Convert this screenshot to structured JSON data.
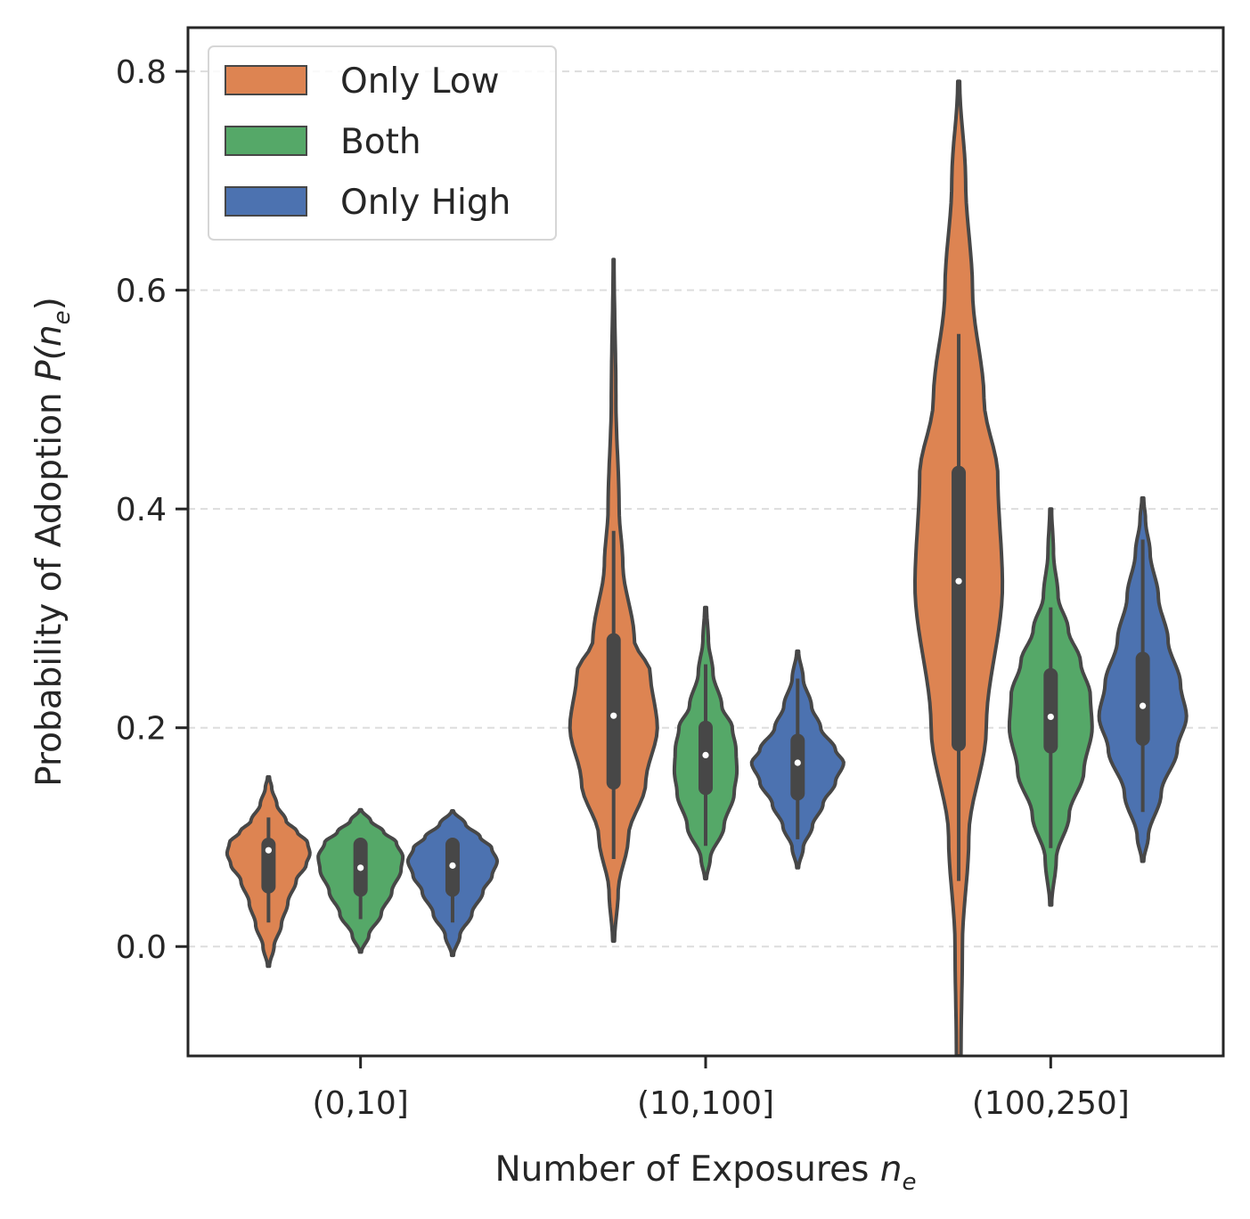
{
  "chart_data": {
    "type": "violin",
    "xlabel": "Number of Exposures",
    "xlabel_var": "n",
    "xlabel_sub": "e",
    "ylabel": "Probability of Adoption",
    "ylabel_var": "P(n",
    "ylabel_sub": "e",
    "ylabel_close": ")",
    "categories": [
      "(0,10]",
      "(10,100]",
      "(100,250]"
    ],
    "ylim": [
      -0.1,
      0.84
    ],
    "yticks": [
      0.0,
      0.2,
      0.4,
      0.6,
      0.8
    ],
    "ytick_labels": [
      "0.0",
      "0.2",
      "0.4",
      "0.6",
      "0.8"
    ],
    "grid": "horizontal dashed",
    "legend_position": "top-left",
    "series": [
      {
        "name": "Only Low",
        "color": "#dd8452",
        "violins": [
          {
            "category": "(0,10]",
            "min": -0.018,
            "max": 0.155,
            "q1": 0.055,
            "median": 0.088,
            "q3": 0.093,
            "whisker_low": 0.022,
            "whisker_high": 0.118,
            "halfwidth": 0.9,
            "profile": [
              [
                -0.018,
                0.02
              ],
              [
                0.0,
                0.12
              ],
              [
                0.02,
                0.28
              ],
              [
                0.04,
                0.42
              ],
              [
                0.06,
                0.6
              ],
              [
                0.075,
                0.82
              ],
              [
                0.085,
                0.9
              ],
              [
                0.095,
                0.85
              ],
              [
                0.105,
                0.62
              ],
              [
                0.115,
                0.38
              ],
              [
                0.13,
                0.18
              ],
              [
                0.145,
                0.07
              ],
              [
                0.155,
                0.02
              ]
            ]
          },
          {
            "category": "(10,100]",
            "min": 0.005,
            "max": 0.628,
            "q1": 0.15,
            "median": 0.211,
            "q3": 0.28,
            "whisker_low": 0.08,
            "whisker_high": 0.38,
            "halfwidth": 0.45,
            "profile": [
              [
                0.005,
                0.02
              ],
              [
                0.05,
                0.1
              ],
              [
                0.1,
                0.32
              ],
              [
                0.15,
                0.7
              ],
              [
                0.2,
                0.95
              ],
              [
                0.25,
                0.8
              ],
              [
                0.28,
                0.45
              ],
              [
                0.35,
                0.2
              ],
              [
                0.4,
                0.12
              ],
              [
                0.5,
                0.05
              ],
              [
                0.628,
                0.01
              ]
            ]
          },
          {
            "category": "(100,250]",
            "min": -0.1,
            "max": 0.791,
            "q1": 0.185,
            "median": 0.334,
            "q3": 0.433,
            "whisker_low": 0.06,
            "whisker_high": 0.56,
            "halfwidth": 0.42,
            "profile": [
              [
                -0.1,
                0.05
              ],
              [
                0.0,
                0.08
              ],
              [
                0.1,
                0.22
              ],
              [
                0.2,
                0.6
              ],
              [
                0.33,
                0.95
              ],
              [
                0.43,
                0.85
              ],
              [
                0.5,
                0.55
              ],
              [
                0.6,
                0.3
              ],
              [
                0.7,
                0.15
              ],
              [
                0.791,
                0.02
              ]
            ]
          }
        ]
      },
      {
        "name": "Both",
        "color": "#55a868",
        "violins": [
          {
            "category": "(0,10]",
            "min": -0.005,
            "max": 0.125,
            "q1": 0.052,
            "median": 0.072,
            "q3": 0.093,
            "whisker_low": 0.025,
            "whisker_high": 0.097,
            "halfwidth": 0.92,
            "profile": [
              [
                -0.005,
                0.02
              ],
              [
                0.01,
                0.18
              ],
              [
                0.03,
                0.45
              ],
              [
                0.05,
                0.68
              ],
              [
                0.07,
                0.88
              ],
              [
                0.082,
                0.92
              ],
              [
                0.095,
                0.78
              ],
              [
                0.105,
                0.5
              ],
              [
                0.115,
                0.22
              ],
              [
                0.125,
                0.02
              ]
            ]
          },
          {
            "category": "(10,100]",
            "min": 0.062,
            "max": 0.31,
            "q1": 0.145,
            "median": 0.175,
            "q3": 0.2,
            "whisker_low": 0.092,
            "whisker_high": 0.258,
            "halfwidth": 0.7,
            "profile": [
              [
                0.062,
                0.02
              ],
              [
                0.08,
                0.1
              ],
              [
                0.11,
                0.4
              ],
              [
                0.14,
                0.62
              ],
              [
                0.16,
                0.68
              ],
              [
                0.18,
                0.66
              ],
              [
                0.2,
                0.58
              ],
              [
                0.22,
                0.35
              ],
              [
                0.25,
                0.16
              ],
              [
                0.28,
                0.06
              ],
              [
                0.31,
                0.02
              ]
            ]
          },
          {
            "category": "(100,250]",
            "min": 0.038,
            "max": 0.4,
            "q1": 0.183,
            "median": 0.21,
            "q3": 0.248,
            "whisker_low": 0.09,
            "whisker_high": 0.31,
            "halfwidth": 0.9,
            "profile": [
              [
                0.038,
                0.02
              ],
              [
                0.08,
                0.12
              ],
              [
                0.12,
                0.4
              ],
              [
                0.16,
                0.72
              ],
              [
                0.2,
                0.9
              ],
              [
                0.23,
                0.86
              ],
              [
                0.26,
                0.65
              ],
              [
                0.29,
                0.38
              ],
              [
                0.32,
                0.16
              ],
              [
                0.36,
                0.06
              ],
              [
                0.4,
                0.02
              ]
            ]
          }
        ]
      },
      {
        "name": "Only High",
        "color": "#4c72b0",
        "violins": [
          {
            "category": "(0,10]",
            "min": -0.008,
            "max": 0.124,
            "q1": 0.052,
            "median": 0.074,
            "q3": 0.093,
            "whisker_low": 0.022,
            "whisker_high": 0.097,
            "halfwidth": 0.97,
            "profile": [
              [
                -0.008,
                0.02
              ],
              [
                0.01,
                0.16
              ],
              [
                0.03,
                0.42
              ],
              [
                0.05,
                0.66
              ],
              [
                0.065,
                0.86
              ],
              [
                0.078,
                0.97
              ],
              [
                0.09,
                0.85
              ],
              [
                0.1,
                0.6
              ],
              [
                0.112,
                0.28
              ],
              [
                0.124,
                0.02
              ]
            ]
          },
          {
            "category": "(10,100]",
            "min": 0.072,
            "max": 0.27,
            "q1": 0.14,
            "median": 0.168,
            "q3": 0.188,
            "whisker_low": 0.098,
            "whisker_high": 0.245,
            "halfwidth": 1.0,
            "profile": [
              [
                0.072,
                0.02
              ],
              [
                0.09,
                0.12
              ],
              [
                0.11,
                0.32
              ],
              [
                0.13,
                0.55
              ],
              [
                0.15,
                0.82
              ],
              [
                0.168,
                1.0
              ],
              [
                0.18,
                0.82
              ],
              [
                0.2,
                0.5
              ],
              [
                0.22,
                0.3
              ],
              [
                0.245,
                0.12
              ],
              [
                0.27,
                0.02
              ]
            ]
          },
          {
            "category": "(100,250]",
            "min": 0.078,
            "max": 0.41,
            "q1": 0.19,
            "median": 0.22,
            "q3": 0.263,
            "whisker_low": 0.123,
            "whisker_high": 0.372,
            "halfwidth": 0.95,
            "profile": [
              [
                0.078,
                0.02
              ],
              [
                0.1,
                0.12
              ],
              [
                0.14,
                0.4
              ],
              [
                0.18,
                0.75
              ],
              [
                0.21,
                0.95
              ],
              [
                0.24,
                0.82
              ],
              [
                0.28,
                0.55
              ],
              [
                0.32,
                0.34
              ],
              [
                0.36,
                0.16
              ],
              [
                0.39,
                0.06
              ],
              [
                0.41,
                0.02
              ]
            ]
          }
        ]
      }
    ]
  }
}
